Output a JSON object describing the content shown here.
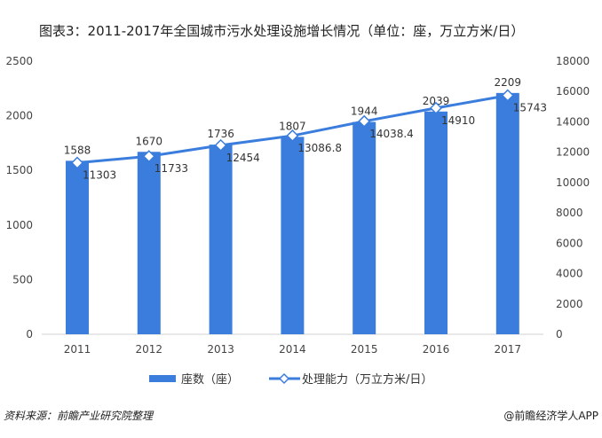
{
  "title": "图表3：2011-2017年全国城市污水处理设施增长情况（单位：座，万立方米/日）",
  "source": "资料来源：前瞻产业研究院整理",
  "brand": "@前瞻经济学人APP",
  "watermark": "前瞻产业研究院",
  "chart_data": {
    "type": "bar+line",
    "categories": [
      "2011",
      "2012",
      "2013",
      "2014",
      "2015",
      "2016",
      "2017"
    ],
    "series": [
      {
        "name": "座数（座）",
        "type": "bar",
        "axis": "left",
        "values": [
          1588,
          1670,
          1736,
          1807,
          1944,
          2039,
          2209
        ],
        "labels": [
          "1588",
          "1670",
          "1736",
          "1807",
          "1944",
          "2039",
          "2209"
        ],
        "color": "#3b7ddd"
      },
      {
        "name": "处理能力（万立方米/日）",
        "type": "line",
        "axis": "right",
        "values": [
          11303,
          11733,
          12454,
          13086.8,
          14038.4,
          14910,
          15743
        ],
        "labels": [
          "11303",
          "11733",
          "12454",
          "13086.8",
          "14038.4",
          "14910",
          "15743"
        ],
        "color": "#3b7ddd"
      }
    ],
    "y_left": {
      "range": [
        0,
        2500
      ],
      "ticks": [
        "0",
        "500",
        "1000",
        "1500",
        "2000",
        "2500"
      ]
    },
    "y_right": {
      "range": [
        0,
        18000
      ],
      "ticks": [
        "0",
        "2000",
        "4000",
        "6000",
        "8000",
        "10000",
        "12000",
        "14000",
        "16000",
        "18000"
      ]
    },
    "grid": false,
    "legend": "bottom"
  }
}
